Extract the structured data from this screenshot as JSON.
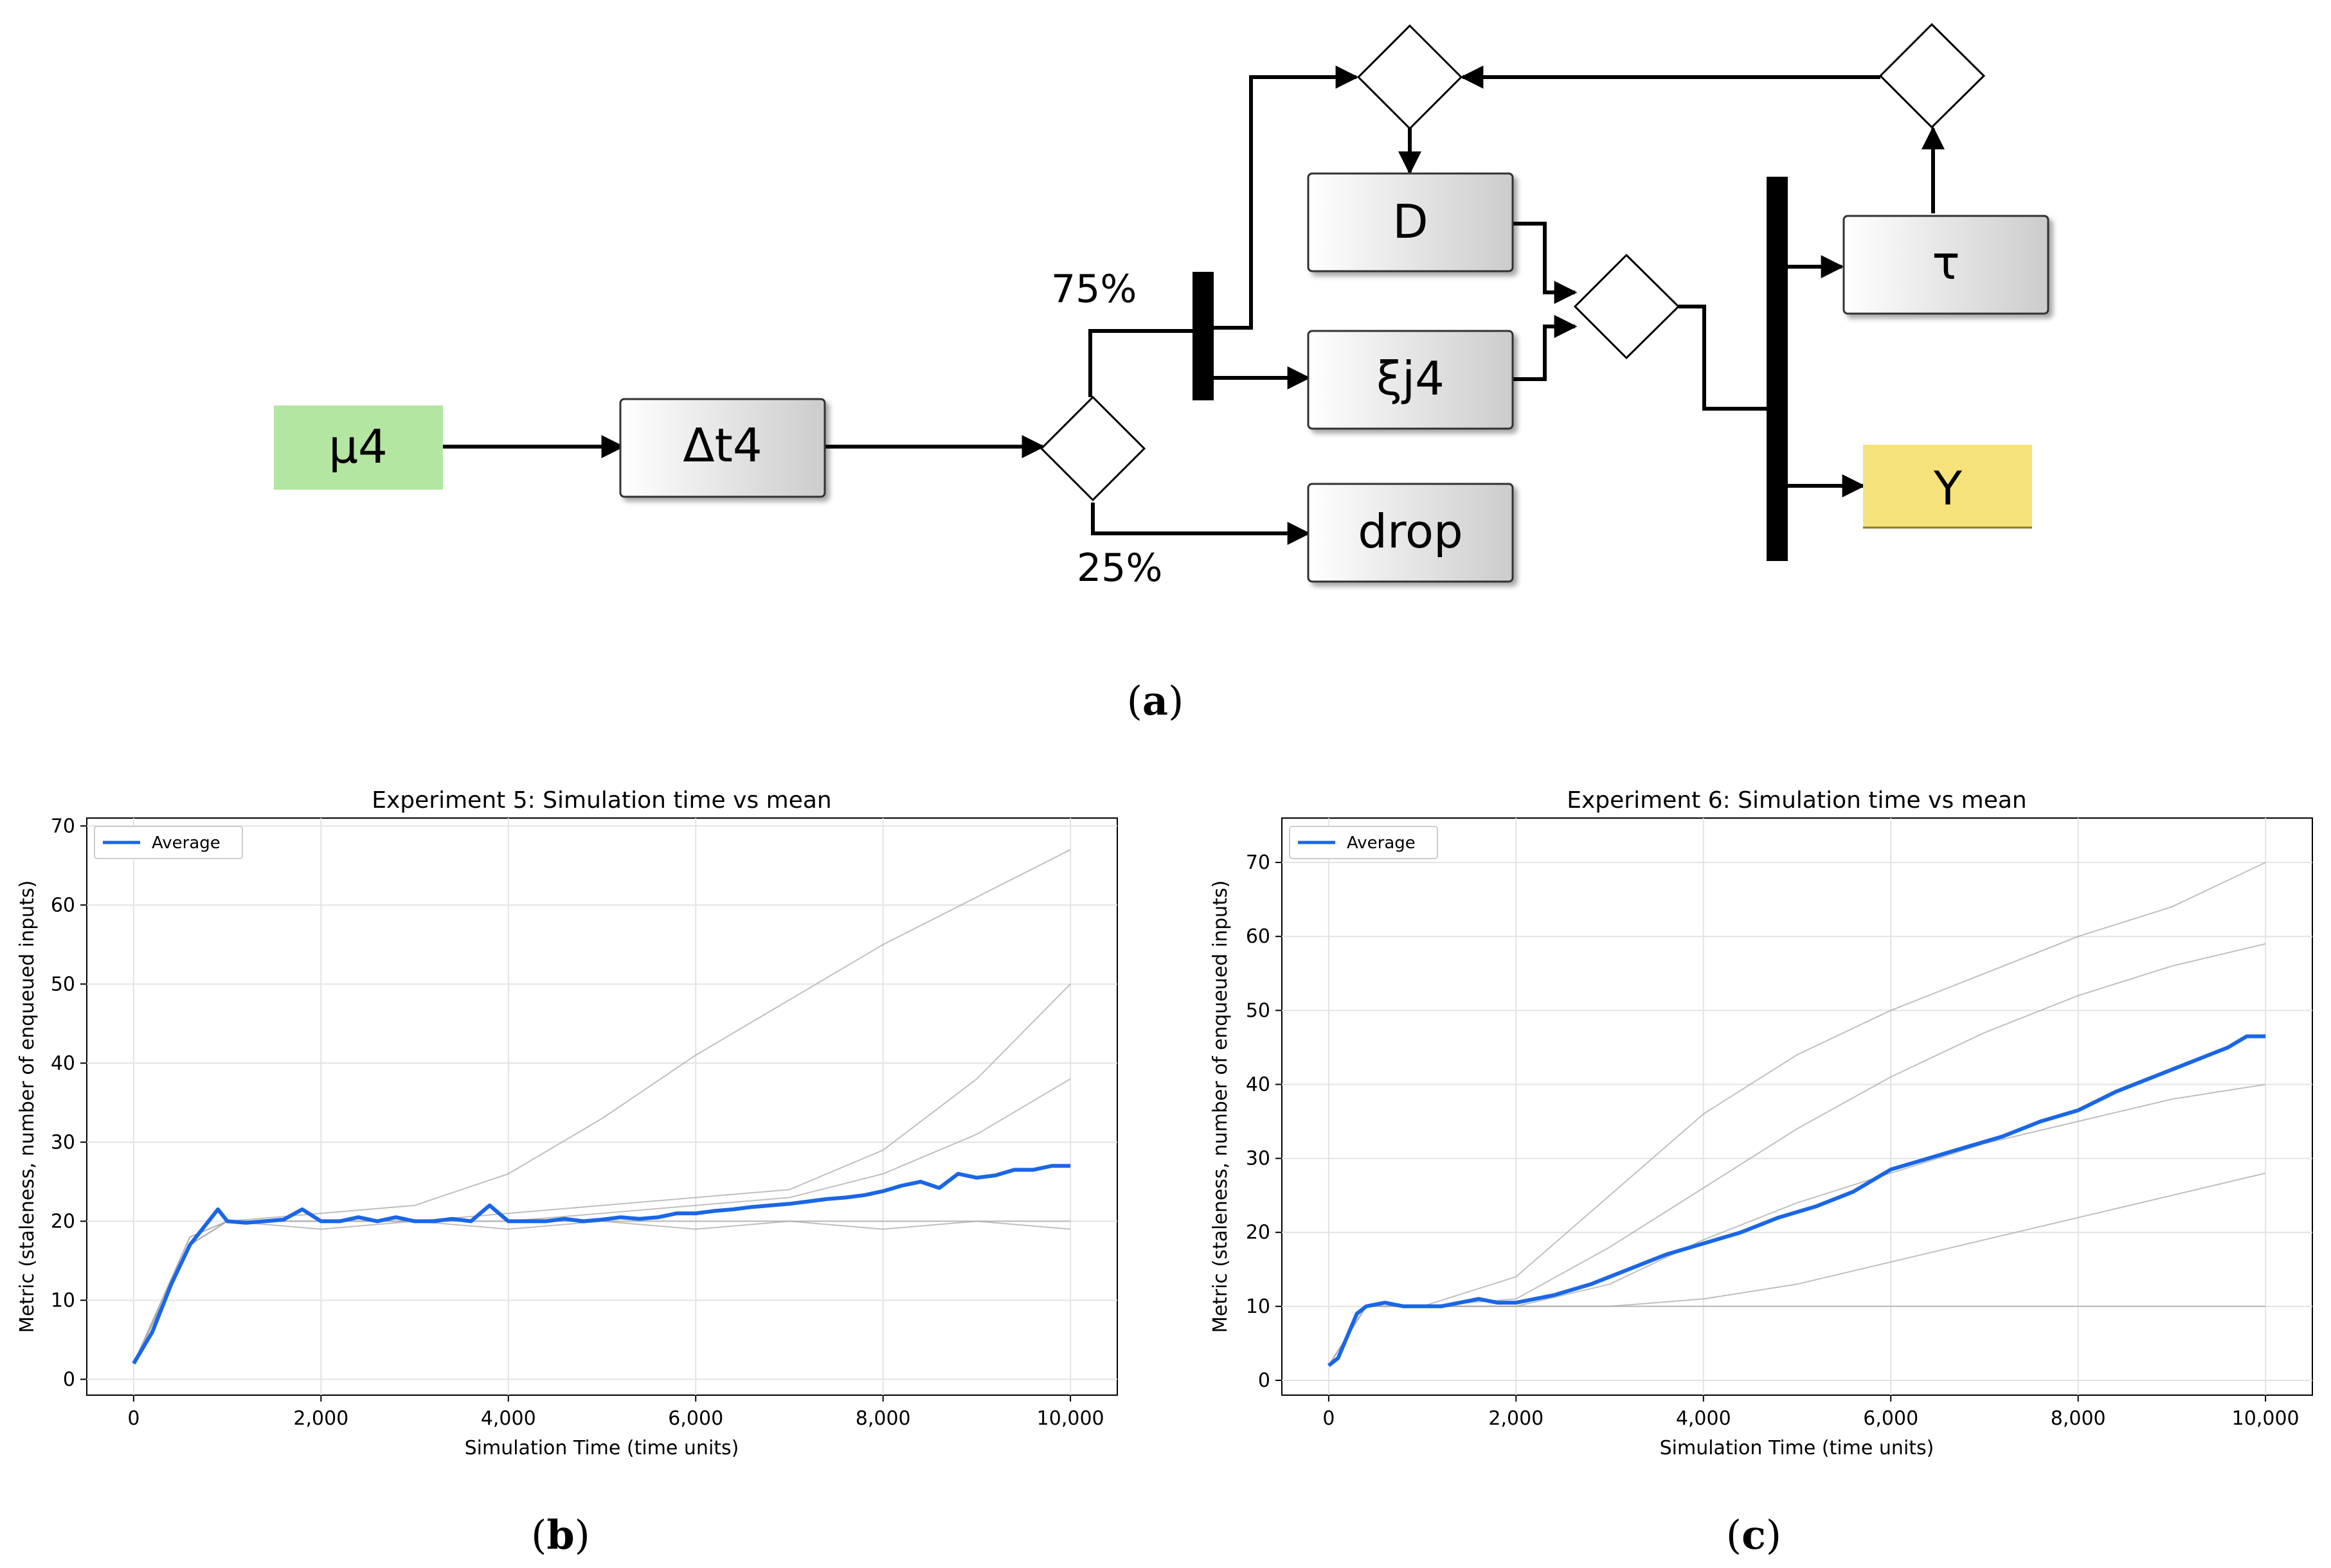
{
  "diagram": {
    "nodes": {
      "mu4": "μ4",
      "dt4": "Δt4",
      "D": "D",
      "xij4": "ξj4",
      "drop": "drop",
      "tau": "τ",
      "Y": "Y"
    },
    "edge_labels": {
      "p75": "75%",
      "p25": "25%"
    },
    "colors": {
      "source_fill": "#b3e6a1",
      "sink_fill": "#f5e27a",
      "box_gradient_start": "#ffffff",
      "box_gradient_end": "#cccccc"
    }
  },
  "panels": {
    "a": "a",
    "b": "b",
    "c": "c"
  },
  "chart_data": [
    {
      "type": "line",
      "title": "Experiment 5: Simulation time vs mean",
      "xlabel": "Simulation Time (time units)",
      "ylabel": "Metric (staleness, number of enqueued inputs)",
      "xlim": [
        -500,
        10500
      ],
      "ylim": [
        -2,
        71
      ],
      "xticks": [
        0,
        2000,
        4000,
        6000,
        8000,
        10000
      ],
      "xtick_labels": [
        "0",
        "2,000",
        "4,000",
        "6,000",
        "8,000",
        "10,000"
      ],
      "yticks": [
        0,
        10,
        20,
        30,
        40,
        50,
        60,
        70
      ],
      "ytick_labels": [
        "0",
        "10",
        "20",
        "30",
        "40",
        "50",
        "60",
        "70"
      ],
      "grid": true,
      "legend": "top-left",
      "series": [
        {
          "name": "Average",
          "color": "#1a66e6",
          "x": [
            0,
            200,
            400,
            600,
            800,
            900,
            1000,
            1200,
            1400,
            1600,
            1800,
            2000,
            2200,
            2400,
            2600,
            2800,
            3000,
            3200,
            3400,
            3600,
            3800,
            4000,
            4200,
            4400,
            4600,
            4800,
            5000,
            5200,
            5400,
            5600,
            5800,
            6000,
            6200,
            6400,
            6600,
            6800,
            7000,
            7200,
            7400,
            7600,
            7800,
            8000,
            8200,
            8400,
            8600,
            8800,
            9000,
            9200,
            9400,
            9600,
            9800,
            10000
          ],
          "values": [
            2,
            6,
            12,
            17,
            20,
            21.5,
            20,
            19.8,
            20,
            20.2,
            21.5,
            20,
            20,
            20.5,
            20,
            20.5,
            20,
            20,
            20.3,
            20,
            22,
            20,
            20,
            20,
            20.3,
            20,
            20.2,
            20.5,
            20.3,
            20.5,
            21,
            21,
            21.3,
            21.5,
            21.8,
            22,
            22.2,
            22.5,
            22.8,
            23,
            23.3,
            23.8,
            24.5,
            25,
            24.2,
            26,
            25.5,
            25.8,
            26.5,
            26.5,
            27,
            27
          ]
        },
        {
          "name": "",
          "color": "#aaaaaa",
          "x": [
            0,
            600,
            1000,
            2000,
            3000,
            4000,
            5000,
            6000,
            7000,
            8000,
            9000,
            10000
          ],
          "values": [
            2,
            18,
            20,
            21,
            22,
            26,
            33,
            41,
            48,
            55,
            61,
            67
          ]
        },
        {
          "name": "",
          "color": "#aaaaaa",
          "x": [
            0,
            600,
            1000,
            2000,
            3000,
            4000,
            5000,
            6000,
            7000,
            8000,
            9000,
            10000
          ],
          "values": [
            2,
            17,
            20,
            20,
            20,
            21,
            22,
            23,
            24,
            29,
            38,
            50
          ]
        },
        {
          "name": "",
          "color": "#aaaaaa",
          "x": [
            0,
            600,
            1000,
            2000,
            3000,
            4000,
            5000,
            6000,
            7000,
            8000,
            9000,
            10000
          ],
          "values": [
            2,
            17,
            20,
            20,
            20,
            20,
            21,
            22,
            23,
            26,
            31,
            38
          ]
        },
        {
          "name": "",
          "color": "#aaaaaa",
          "x": [
            0,
            600,
            1000,
            2000,
            3000,
            4000,
            5000,
            6000,
            7000,
            8000,
            9000,
            10000
          ],
          "values": [
            2,
            18,
            20,
            20,
            20,
            20,
            20,
            20,
            20,
            20,
            20,
            20
          ]
        },
        {
          "name": "",
          "color": "#aaaaaa",
          "x": [
            0,
            600,
            1000,
            2000,
            3000,
            4000,
            5000,
            6000,
            7000,
            8000,
            9000,
            10000
          ],
          "values": [
            2,
            17,
            20,
            19,
            20,
            19,
            20,
            19,
            20,
            19,
            20,
            19
          ]
        }
      ]
    },
    {
      "type": "line",
      "title": "Experiment 6: Simulation time vs mean",
      "xlabel": "Simulation Time (time units)",
      "ylabel": "Metric (staleness, number of enqueued inputs)",
      "xlim": [
        -500,
        10500
      ],
      "ylim": [
        -2,
        76
      ],
      "xticks": [
        0,
        2000,
        4000,
        6000,
        8000,
        10000
      ],
      "xtick_labels": [
        "0",
        "2,000",
        "4,000",
        "6,000",
        "8,000",
        "10,000"
      ],
      "yticks": [
        0,
        10,
        20,
        30,
        40,
        50,
        60,
        70
      ],
      "ytick_labels": [
        "0",
        "10",
        "20",
        "30",
        "40",
        "50",
        "60",
        "70"
      ],
      "grid": true,
      "legend": "top-left",
      "series": [
        {
          "name": "Average",
          "color": "#1a66e6",
          "x": [
            0,
            100,
            200,
            300,
            400,
            600,
            800,
            1000,
            1200,
            1400,
            1600,
            1800,
            2000,
            2400,
            2800,
            3200,
            3600,
            4000,
            4400,
            4800,
            5200,
            5600,
            6000,
            6400,
            6800,
            7200,
            7600,
            8000,
            8400,
            8800,
            9200,
            9600,
            9800,
            10000
          ],
          "values": [
            2,
            3,
            6,
            9,
            10,
            10.5,
            10,
            10,
            10,
            10.5,
            11,
            10.5,
            10.5,
            11.5,
            13,
            15,
            17,
            18.5,
            20,
            22,
            23.5,
            25.5,
            28.5,
            30,
            31.5,
            33,
            35,
            36.5,
            39,
            41,
            43,
            45,
            46.5,
            46.5
          ]
        },
        {
          "name": "",
          "color": "#aaaaaa",
          "x": [
            0,
            400,
            1000,
            2000,
            3000,
            4000,
            5000,
            6000,
            7000,
            8000,
            9000,
            10000
          ],
          "values": [
            2,
            10,
            10,
            14,
            25,
            36,
            44,
            50,
            55,
            60,
            64,
            70
          ]
        },
        {
          "name": "",
          "color": "#aaaaaa",
          "x": [
            0,
            400,
            1000,
            2000,
            3000,
            4000,
            5000,
            6000,
            7000,
            8000,
            9000,
            10000
          ],
          "values": [
            2,
            10,
            10,
            11,
            18,
            26,
            34,
            41,
            47,
            52,
            56,
            59
          ]
        },
        {
          "name": "",
          "color": "#aaaaaa",
          "x": [
            0,
            400,
            1000,
            2000,
            3000,
            4000,
            5000,
            6000,
            7000,
            8000,
            9000,
            10000
          ],
          "values": [
            2,
            10,
            10,
            10,
            13,
            19,
            24,
            28,
            32,
            35,
            38,
            40
          ]
        },
        {
          "name": "",
          "color": "#aaaaaa",
          "x": [
            0,
            400,
            1000,
            2000,
            3000,
            4000,
            5000,
            6000,
            7000,
            8000,
            9000,
            10000
          ],
          "values": [
            2,
            10,
            10,
            10,
            10,
            11,
            13,
            16,
            19,
            22,
            25,
            28
          ]
        },
        {
          "name": "",
          "color": "#aaaaaa",
          "x": [
            0,
            400,
            1000,
            2000,
            3000,
            4000,
            5000,
            6000,
            7000,
            8000,
            9000,
            10000
          ],
          "values": [
            2,
            10,
            10,
            10,
            10,
            10,
            10,
            10,
            10,
            10,
            10,
            10
          ]
        }
      ]
    }
  ]
}
